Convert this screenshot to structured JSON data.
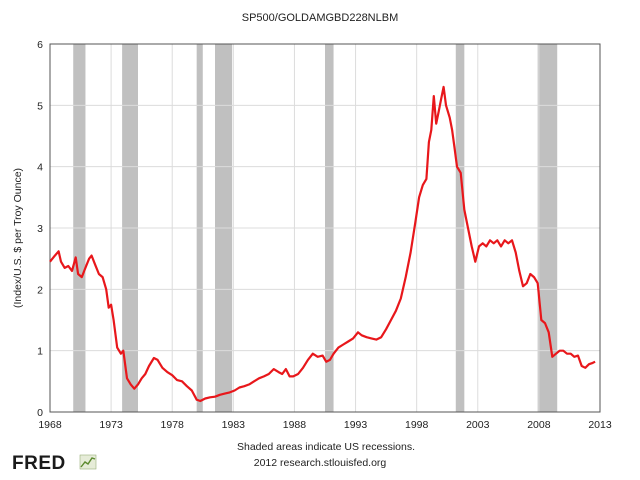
{
  "chart_data": {
    "type": "line",
    "title": "SP500/GOLDAMGBD228NLBM",
    "xlabel": "",
    "ylabel": "(Index/U.S. $ per Troy Ounce)",
    "xlim": [
      1968,
      2013
    ],
    "ylim": [
      0,
      6
    ],
    "x_ticks": [
      "1968",
      "1973",
      "1978",
      "1983",
      "1988",
      "1993",
      "1998",
      "2003",
      "2008",
      "2013"
    ],
    "y_ticks": [
      "0",
      "1",
      "2",
      "3",
      "4",
      "5",
      "6"
    ],
    "grid": true,
    "line_color": "#e8171b",
    "recession_color": "#c0c0c0",
    "recessions": [
      [
        1969.9,
        1970.9
      ],
      [
        1973.9,
        1975.2
      ],
      [
        1980.0,
        1980.5
      ],
      [
        1981.5,
        1982.9
      ],
      [
        1990.5,
        1991.2
      ],
      [
        2001.2,
        2001.9
      ],
      [
        2007.9,
        2009.5
      ]
    ],
    "series": [
      {
        "values": [
          [
            1968.0,
            2.45
          ],
          [
            1968.4,
            2.55
          ],
          [
            1968.7,
            2.62
          ],
          [
            1968.9,
            2.45
          ],
          [
            1969.2,
            2.35
          ],
          [
            1969.5,
            2.38
          ],
          [
            1969.8,
            2.3
          ],
          [
            1970.1,
            2.52
          ],
          [
            1970.3,
            2.25
          ],
          [
            1970.6,
            2.2
          ],
          [
            1970.9,
            2.35
          ],
          [
            1971.2,
            2.5
          ],
          [
            1971.4,
            2.55
          ],
          [
            1971.7,
            2.4
          ],
          [
            1972.0,
            2.25
          ],
          [
            1972.3,
            2.2
          ],
          [
            1972.6,
            2.0
          ],
          [
            1972.8,
            1.7
          ],
          [
            1973.0,
            1.75
          ],
          [
            1973.2,
            1.5
          ],
          [
            1973.5,
            1.05
          ],
          [
            1973.8,
            0.95
          ],
          [
            1974.0,
            1.0
          ],
          [
            1974.3,
            0.55
          ],
          [
            1974.6,
            0.45
          ],
          [
            1974.9,
            0.38
          ],
          [
            1975.2,
            0.45
          ],
          [
            1975.5,
            0.55
          ],
          [
            1975.8,
            0.62
          ],
          [
            1976.1,
            0.75
          ],
          [
            1976.5,
            0.88
          ],
          [
            1976.8,
            0.85
          ],
          [
            1977.2,
            0.72
          ],
          [
            1977.6,
            0.65
          ],
          [
            1978.0,
            0.6
          ],
          [
            1978.4,
            0.52
          ],
          [
            1978.8,
            0.5
          ],
          [
            1979.2,
            0.42
          ],
          [
            1979.6,
            0.35
          ],
          [
            1980.0,
            0.2
          ],
          [
            1980.3,
            0.18
          ],
          [
            1980.7,
            0.22
          ],
          [
            1981.1,
            0.24
          ],
          [
            1981.5,
            0.25
          ],
          [
            1981.9,
            0.28
          ],
          [
            1982.3,
            0.3
          ],
          [
            1982.7,
            0.32
          ],
          [
            1983.1,
            0.35
          ],
          [
            1983.5,
            0.4
          ],
          [
            1983.9,
            0.42
          ],
          [
            1984.3,
            0.45
          ],
          [
            1984.7,
            0.5
          ],
          [
            1985.1,
            0.55
          ],
          [
            1985.5,
            0.58
          ],
          [
            1985.9,
            0.62
          ],
          [
            1986.3,
            0.7
          ],
          [
            1986.7,
            0.65
          ],
          [
            1987.0,
            0.62
          ],
          [
            1987.3,
            0.7
          ],
          [
            1987.6,
            0.58
          ],
          [
            1987.9,
            0.58
          ],
          [
            1988.3,
            0.62
          ],
          [
            1988.7,
            0.72
          ],
          [
            1989.1,
            0.85
          ],
          [
            1989.5,
            0.95
          ],
          [
            1989.9,
            0.9
          ],
          [
            1990.3,
            0.92
          ],
          [
            1990.6,
            0.82
          ],
          [
            1990.9,
            0.85
          ],
          [
            1991.2,
            0.95
          ],
          [
            1991.6,
            1.05
          ],
          [
            1992.0,
            1.1
          ],
          [
            1992.4,
            1.15
          ],
          [
            1992.8,
            1.2
          ],
          [
            1993.2,
            1.3
          ],
          [
            1993.5,
            1.25
          ],
          [
            1993.9,
            1.22
          ],
          [
            1994.3,
            1.2
          ],
          [
            1994.7,
            1.18
          ],
          [
            1995.1,
            1.22
          ],
          [
            1995.5,
            1.35
          ],
          [
            1995.9,
            1.5
          ],
          [
            1996.3,
            1.65
          ],
          [
            1996.7,
            1.85
          ],
          [
            1997.1,
            2.2
          ],
          [
            1997.5,
            2.6
          ],
          [
            1997.9,
            3.1
          ],
          [
            1998.2,
            3.5
          ],
          [
            1998.5,
            3.7
          ],
          [
            1998.8,
            3.8
          ],
          [
            1999.0,
            4.4
          ],
          [
            1999.2,
            4.6
          ],
          [
            1999.4,
            5.15
          ],
          [
            1999.6,
            4.7
          ],
          [
            1999.8,
            4.9
          ],
          [
            2000.0,
            5.1
          ],
          [
            2000.2,
            5.3
          ],
          [
            2000.4,
            5.0
          ],
          [
            2000.7,
            4.8
          ],
          [
            2000.9,
            4.6
          ],
          [
            2001.1,
            4.3
          ],
          [
            2001.3,
            4.0
          ],
          [
            2001.6,
            3.9
          ],
          [
            2001.9,
            3.3
          ],
          [
            2002.2,
            3.0
          ],
          [
            2002.5,
            2.7
          ],
          [
            2002.8,
            2.45
          ],
          [
            2003.1,
            2.7
          ],
          [
            2003.4,
            2.75
          ],
          [
            2003.7,
            2.7
          ],
          [
            2004.0,
            2.8
          ],
          [
            2004.3,
            2.75
          ],
          [
            2004.6,
            2.8
          ],
          [
            2004.9,
            2.7
          ],
          [
            2005.2,
            2.8
          ],
          [
            2005.5,
            2.75
          ],
          [
            2005.8,
            2.8
          ],
          [
            2006.1,
            2.6
          ],
          [
            2006.4,
            2.3
          ],
          [
            2006.7,
            2.05
          ],
          [
            2007.0,
            2.1
          ],
          [
            2007.3,
            2.25
          ],
          [
            2007.6,
            2.2
          ],
          [
            2007.9,
            2.1
          ],
          [
            2008.2,
            1.5
          ],
          [
            2008.5,
            1.45
          ],
          [
            2008.8,
            1.3
          ],
          [
            2009.1,
            0.9
          ],
          [
            2009.4,
            0.95
          ],
          [
            2009.7,
            1.0
          ],
          [
            2010.0,
            1.0
          ],
          [
            2010.3,
            0.95
          ],
          [
            2010.6,
            0.95
          ],
          [
            2010.9,
            0.9
          ],
          [
            2011.2,
            0.92
          ],
          [
            2011.5,
            0.75
          ],
          [
            2011.8,
            0.72
          ],
          [
            2012.1,
            0.78
          ],
          [
            2012.4,
            0.8
          ],
          [
            2012.6,
            0.82
          ]
        ]
      }
    ]
  },
  "footer": {
    "note_line1": "Shaded areas indicate US recessions.",
    "note_line2": "2012 research.stlouisfed.org",
    "logo_text": "FRED"
  }
}
